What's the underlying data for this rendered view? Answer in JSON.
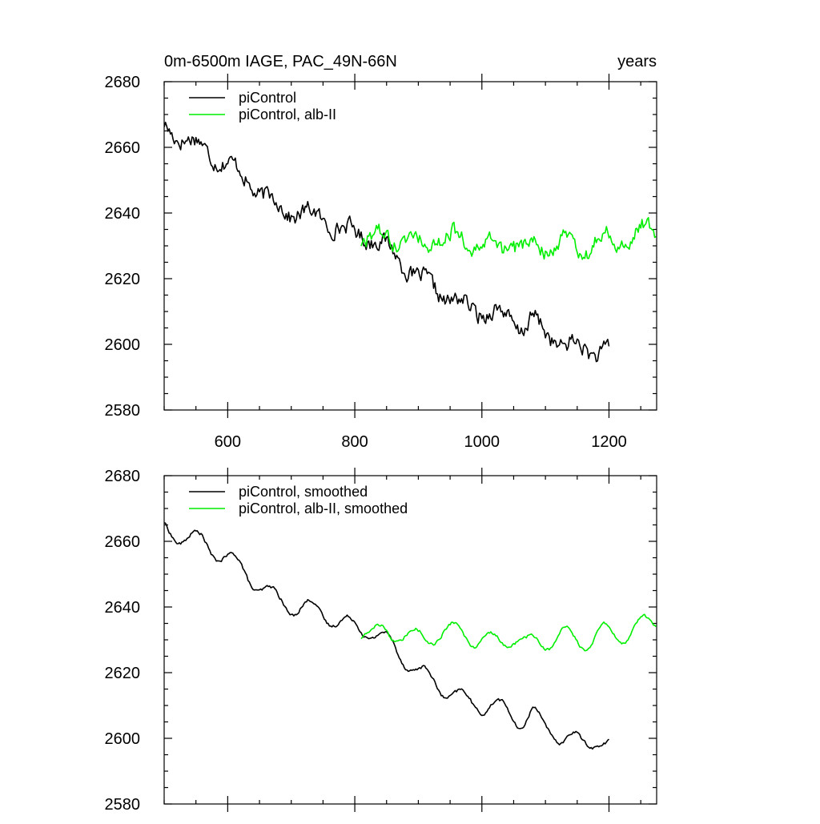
{
  "title_left": "0m-6500m IAGE, PAC_49N-66N",
  "title_right": "years",
  "colors": {
    "piControl": "#000000",
    "albII": "#00ee00",
    "axis": "#000000",
    "background": "#ffffff"
  },
  "chart_data": [
    {
      "type": "line",
      "panel": "top",
      "xlim": [
        500,
        1275
      ],
      "ylim": [
        2580,
        2680
      ],
      "xticks": [
        600,
        800,
        1000,
        1200
      ],
      "yticks": [
        2580,
        2600,
        2620,
        2640,
        2660,
        2680
      ],
      "xtick_labels": [
        "600",
        "800",
        "1000",
        "1200"
      ],
      "ytick_labels": [
        "2580",
        "2600",
        "2620",
        "2640",
        "2660",
        "2680"
      ],
      "legend_position": "top-left",
      "series": [
        {
          "name": "piControl",
          "color_key": "piControl",
          "x_start": 500,
          "x_end": 1200,
          "noise": 3.8,
          "osc": 1.8,
          "anchors": [
            [
              500,
              2666
            ],
            [
              520,
              2664
            ],
            [
              540,
              2662
            ],
            [
              560,
              2660
            ],
            [
              580,
              2657
            ],
            [
              600,
              2655
            ],
            [
              620,
              2652
            ],
            [
              640,
              2648
            ],
            [
              660,
              2645
            ],
            [
              680,
              2642
            ],
            [
              700,
              2640
            ],
            [
              720,
              2640
            ],
            [
              740,
              2639
            ],
            [
              760,
              2637
            ],
            [
              780,
              2635
            ],
            [
              800,
              2634
            ],
            [
              820,
              2633
            ],
            [
              840,
              2631
            ],
            [
              860,
              2628
            ],
            [
              880,
              2624
            ],
            [
              900,
              2620
            ],
            [
              920,
              2618
            ],
            [
              940,
              2615
            ],
            [
              960,
              2613
            ],
            [
              980,
              2611
            ],
            [
              1000,
              2610
            ],
            [
              1020,
              2610
            ],
            [
              1040,
              2608
            ],
            [
              1060,
              2605
            ],
            [
              1080,
              2608
            ],
            [
              1100,
              2603
            ],
            [
              1120,
              2601
            ],
            [
              1140,
              2600
            ],
            [
              1160,
              2598
            ],
            [
              1180,
              2598
            ],
            [
              1200,
              2599
            ]
          ]
        },
        {
          "name": "piControl, alb-II",
          "color_key": "albII",
          "x_start": 810,
          "x_end": 1275,
          "noise": 3.6,
          "osc": 2.5,
          "anchors": [
            [
              810,
              2633
            ],
            [
              830,
              2631
            ],
            [
              850,
              2633
            ],
            [
              870,
              2632
            ],
            [
              890,
              2630
            ],
            [
              910,
              2631
            ],
            [
              930,
              2632
            ],
            [
              950,
              2632
            ],
            [
              970,
              2633
            ],
            [
              990,
              2630
            ],
            [
              1010,
              2629
            ],
            [
              1030,
              2630
            ],
            [
              1050,
              2631
            ],
            [
              1070,
              2628
            ],
            [
              1090,
              2630
            ],
            [
              1110,
              2630
            ],
            [
              1130,
              2631
            ],
            [
              1150,
              2630
            ],
            [
              1170,
              2630
            ],
            [
              1190,
              2632
            ],
            [
              1210,
              2632
            ],
            [
              1230,
              2632
            ],
            [
              1250,
              2634
            ],
            [
              1275,
              2636
            ]
          ]
        }
      ]
    },
    {
      "type": "line",
      "panel": "bottom",
      "xlim": [
        500,
        1275
      ],
      "ylim": [
        2580,
        2680
      ],
      "xticks": [
        600,
        800,
        1000,
        1200
      ],
      "yticks": [
        2580,
        2600,
        2620,
        2640,
        2660,
        2680
      ],
      "xtick_labels": [],
      "ytick_labels": [
        "2580",
        "2600",
        "2620",
        "2640",
        "2660",
        "2680"
      ],
      "legend_position": "top-left",
      "series": [
        {
          "name": "piControl, smoothed",
          "color_key": "piControl",
          "x_start": 500,
          "x_end": 1200,
          "noise": 0.8,
          "osc": 2.6,
          "anchors": [
            [
              500,
              2664
            ],
            [
              520,
              2662
            ],
            [
              540,
              2661
            ],
            [
              560,
              2660
            ],
            [
              580,
              2657
            ],
            [
              600,
              2655
            ],
            [
              620,
              2652
            ],
            [
              640,
              2648
            ],
            [
              660,
              2645
            ],
            [
              680,
              2642
            ],
            [
              700,
              2640
            ],
            [
              720,
              2640
            ],
            [
              740,
              2639
            ],
            [
              760,
              2637
            ],
            [
              780,
              2635
            ],
            [
              800,
              2634
            ],
            [
              820,
              2633
            ],
            [
              840,
              2631
            ],
            [
              860,
              2628
            ],
            [
              880,
              2624
            ],
            [
              900,
              2620
            ],
            [
              920,
              2618
            ],
            [
              940,
              2615
            ],
            [
              960,
              2613
            ],
            [
              980,
              2611
            ],
            [
              1000,
              2610
            ],
            [
              1020,
              2610
            ],
            [
              1040,
              2608
            ],
            [
              1060,
              2605
            ],
            [
              1080,
              2608
            ],
            [
              1100,
              2603
            ],
            [
              1120,
              2601
            ],
            [
              1140,
              2600
            ],
            [
              1160,
              2598
            ],
            [
              1180,
              2600
            ],
            [
              1200,
              2598
            ]
          ]
        },
        {
          "name": "piControl, alb-II, smoothed",
          "color_key": "albII",
          "x_start": 810,
          "x_end": 1275,
          "noise": 0.7,
          "osc": 3.0,
          "anchors": [
            [
              810,
              2633
            ],
            [
              830,
              2631
            ],
            [
              850,
              2633
            ],
            [
              870,
              2632
            ],
            [
              890,
              2630
            ],
            [
              910,
              2631
            ],
            [
              930,
              2632
            ],
            [
              950,
              2632
            ],
            [
              970,
              2633
            ],
            [
              990,
              2630
            ],
            [
              1010,
              2629
            ],
            [
              1030,
              2630
            ],
            [
              1050,
              2631
            ],
            [
              1070,
              2628
            ],
            [
              1090,
              2630
            ],
            [
              1110,
              2630
            ],
            [
              1130,
              2631
            ],
            [
              1150,
              2630
            ],
            [
              1170,
              2630
            ],
            [
              1190,
              2632
            ],
            [
              1210,
              2632
            ],
            [
              1230,
              2632
            ],
            [
              1250,
              2634
            ],
            [
              1275,
              2636
            ]
          ]
        }
      ]
    }
  ]
}
